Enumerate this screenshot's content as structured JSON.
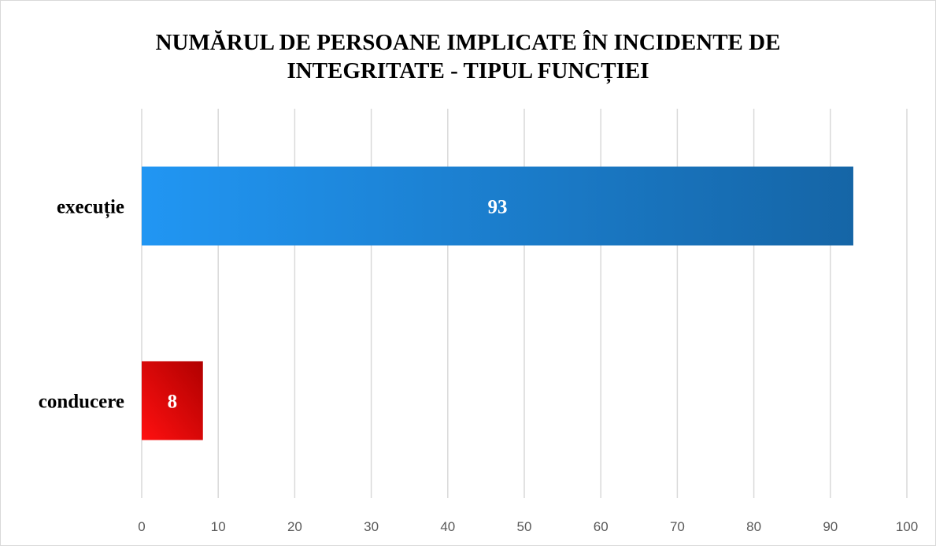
{
  "chart_data": {
    "type": "bar",
    "orientation": "horizontal",
    "title_lines": [
      "NUMĂRUL DE PERSOANE IMPLICATE ÎN INCIDENTE DE",
      "INTEGRITATE - TIPUL FUNCȚIEI"
    ],
    "categories": [
      "execuție",
      "conducere"
    ],
    "values": [
      93,
      8
    ],
    "data_labels": [
      "93",
      "8"
    ],
    "xlim": [
      0,
      100
    ],
    "x_ticks": [
      0,
      10,
      20,
      30,
      40,
      50,
      60,
      70,
      80,
      90,
      100
    ],
    "x_tick_labels": [
      "0",
      "10",
      "20",
      "30",
      "40",
      "50",
      "60",
      "70",
      "80",
      "90",
      "100"
    ],
    "grid": "vertical",
    "legend": "none",
    "colors": {
      "execuție": [
        "#2196f3",
        "#1565a6"
      ],
      "conducere": [
        "#ff1010",
        "#b00000"
      ],
      "grid": "#d9d9d9"
    }
  }
}
